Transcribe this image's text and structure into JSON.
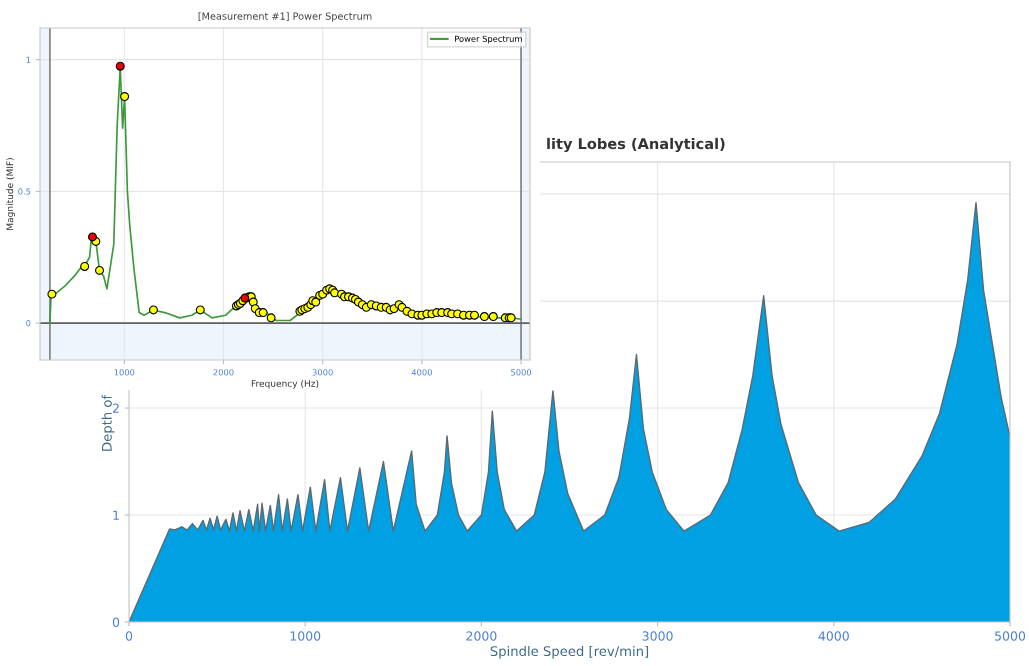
{
  "chart_data": [
    {
      "type": "line",
      "title": "[Measurement #1] Power Spectrum",
      "xlabel": "Frequency (Hz)",
      "ylabel": "Magnitude (MIF)",
      "xlim": [
        150,
        5090
      ],
      "ylim": [
        -0.14,
        1.12
      ],
      "xticks": [
        1000,
        2000,
        3000,
        4000,
        5000
      ],
      "yticks": [
        0,
        0.5,
        1
      ],
      "grid": true,
      "legend": "top right",
      "ref_lines": [
        {
          "axis": "x",
          "value": 250,
          "label": null,
          "color": "#808080"
        },
        {
          "axis": "x",
          "value": 5000,
          "label": null,
          "color": "#808080"
        },
        {
          "axis": "y",
          "value": 0,
          "label": null,
          "color": "#606060"
        }
      ],
      "bands": [
        {
          "axis": "y",
          "from": -0.14,
          "to": 0,
          "label": null,
          "color": "#eef5fd"
        },
        {
          "axis": "x",
          "from": 150,
          "to": 250,
          "label": null,
          "color": "#eef5fd"
        },
        {
          "axis": "x",
          "from": 5000,
          "to": 5090,
          "label": null,
          "color": "#eef5fd"
        }
      ],
      "series": [
        {
          "name": "Power Spectrum",
          "type": "line",
          "color": "#3c9a3c",
          "marker": "none",
          "x": [
            250,
            262,
            300,
            400,
            500,
            580,
            620,
            650,
            665,
            679,
            713,
            750,
            790,
            825,
            894,
            928,
            959,
            983,
            1003,
            1031,
            1055,
            1099,
            1150,
            1200,
            1294,
            1407,
            1560,
            1680,
            1766,
            1885,
            2022,
            2125,
            2262,
            2330,
            2433,
            2484,
            2535,
            2672,
            2774,
            2911,
            3065,
            3185,
            3424,
            3595,
            3800,
            3937,
            4210,
            4450,
            4689,
            4894,
            4997
          ],
          "values": [
            0,
            0.11,
            0.11,
            0.14,
            0.18,
            0.22,
            0.23,
            0.25,
            0.31,
            0.33,
            0.31,
            0.2,
            0.18,
            0.13,
            0.3,
            0.75,
            0.97,
            0.74,
            0.86,
            0.5,
            0.37,
            0.2,
            0.04,
            0.03,
            0.05,
            0.04,
            0.02,
            0.03,
            0.05,
            0.02,
            0.03,
            0.065,
            0.1,
            0.05,
            0.04,
            0.02,
            0.01,
            0.01,
            0.04,
            0.08,
            0.13,
            0.11,
            0.07,
            0.06,
            0.06,
            0.03,
            0.04,
            0.03,
            0.02,
            0.02,
            0.015
          ]
        },
        {
          "type": "scatter",
          "color": "#ffff00",
          "marker": "circle",
          "x": [
            270,
            600,
            713,
            750,
            1003,
            1294,
            1766,
            2130,
            2150,
            2170,
            2195,
            2230,
            2260,
            2280,
            2300,
            2320,
            2360,
            2400,
            2480,
            2770,
            2790,
            2820,
            2850,
            2880,
            2900,
            2930,
            2970,
            3000,
            3040,
            3070,
            3100,
            3120,
            3190,
            3220,
            3260,
            3300,
            3330,
            3360,
            3400,
            3440,
            3490,
            3540,
            3590,
            3640,
            3680,
            3720,
            3770,
            3800,
            3850,
            3900,
            3960,
            4000,
            4050,
            4100,
            4150,
            4200,
            4260,
            4300,
            4360,
            4420,
            4480,
            4530,
            4630,
            4720,
            4840,
            4880,
            4900
          ],
          "values": [
            0.11,
            0.215,
            0.31,
            0.2,
            0.86,
            0.05,
            0.05,
            0.065,
            0.07,
            0.075,
            0.085,
            0.095,
            0.1,
            0.1,
            0.08,
            0.055,
            0.04,
            0.04,
            0.02,
            0.045,
            0.05,
            0.055,
            0.06,
            0.07,
            0.085,
            0.08,
            0.105,
            0.11,
            0.125,
            0.13,
            0.125,
            0.115,
            0.11,
            0.1,
            0.1,
            0.095,
            0.09,
            0.08,
            0.07,
            0.06,
            0.07,
            0.065,
            0.06,
            0.06,
            0.05,
            0.055,
            0.07,
            0.06,
            0.045,
            0.035,
            0.03,
            0.03,
            0.035,
            0.035,
            0.04,
            0.04,
            0.04,
            0.035,
            0.035,
            0.03,
            0.03,
            0.03,
            0.025,
            0.025,
            0.02,
            0.02,
            0.02
          ]
        },
        {
          "type": "scatter",
          "color": "#ee0000",
          "marker": "circle",
          "x": [
            679,
            959,
            2215
          ],
          "values": [
            0.327,
            0.975,
            0.095
          ]
        }
      ]
    },
    {
      "type": "area",
      "title": "lity Lobes (Analytical)",
      "xlabel": "Spindle Speed [rev/min]",
      "ylabel": "Depth of",
      "xlim": [
        0,
        5000
      ],
      "ylim": [
        0,
        4.3
      ],
      "xticks": [
        0,
        1000,
        2000,
        3000,
        4000,
        5000
      ],
      "yticks": [
        0,
        1,
        2,
        {
          "value": 3,
          "label": null
        },
        {
          "value": 4,
          "label": null
        }
      ],
      "grid": true,
      "series": [
        {
          "color": "#00a0e3",
          "x": [
            0,
            230,
            260,
            300,
            330,
            360,
            390,
            420,
            440,
            460,
            480,
            500,
            520,
            550,
            570,
            590,
            610,
            630,
            655,
            680,
            705,
            730,
            740,
            755,
            775,
            802,
            820,
            849,
            870,
            899,
            920,
            959,
            985,
            1029,
            1060,
            1110,
            1140,
            1200,
            1240,
            1310,
            1360,
            1444,
            1500,
            1604,
            1630,
            1680,
            1750,
            1790,
            1805,
            1830,
            1870,
            1920,
            2000,
            2040,
            2062,
            2090,
            2130,
            2200,
            2300,
            2360,
            2406,
            2440,
            2490,
            2580,
            2700,
            2780,
            2840,
            2880,
            2920,
            2970,
            3050,
            3150,
            3300,
            3400,
            3480,
            3540,
            3602,
            3650,
            3700,
            3800,
            3900,
            4030,
            4200,
            4350,
            4500,
            4600,
            4700,
            4760,
            4807,
            4850,
            4900,
            4950,
            5000
          ],
          "values": [
            0,
            0.87,
            0.86,
            0.89,
            0.86,
            0.92,
            0.86,
            0.95,
            0.86,
            0.97,
            0.86,
            0.99,
            0.86,
            0.96,
            0.85,
            1.02,
            0.85,
            1.04,
            0.85,
            1.05,
            0.85,
            1.1,
            0.85,
            1.11,
            0.85,
            1.09,
            0.85,
            1.19,
            0.85,
            1.15,
            0.85,
            1.19,
            0.85,
            1.26,
            0.85,
            1.33,
            0.85,
            1.35,
            0.85,
            1.44,
            0.85,
            1.5,
            0.85,
            1.6,
            1.1,
            0.85,
            1.0,
            1.4,
            1.74,
            1.3,
            1.0,
            0.85,
            1.0,
            1.4,
            1.97,
            1.4,
            1.05,
            0.85,
            1.0,
            1.4,
            2.16,
            1.6,
            1.2,
            0.85,
            1.0,
            1.35,
            1.9,
            2.5,
            1.8,
            1.4,
            1.05,
            0.85,
            1.0,
            1.3,
            1.8,
            2.3,
            3.05,
            2.3,
            1.85,
            1.3,
            1.0,
            0.85,
            0.93,
            1.15,
            1.55,
            1.95,
            2.6,
            3.2,
            3.92,
            3.1,
            2.6,
            2.1,
            1.73
          ]
        }
      ]
    }
  ]
}
